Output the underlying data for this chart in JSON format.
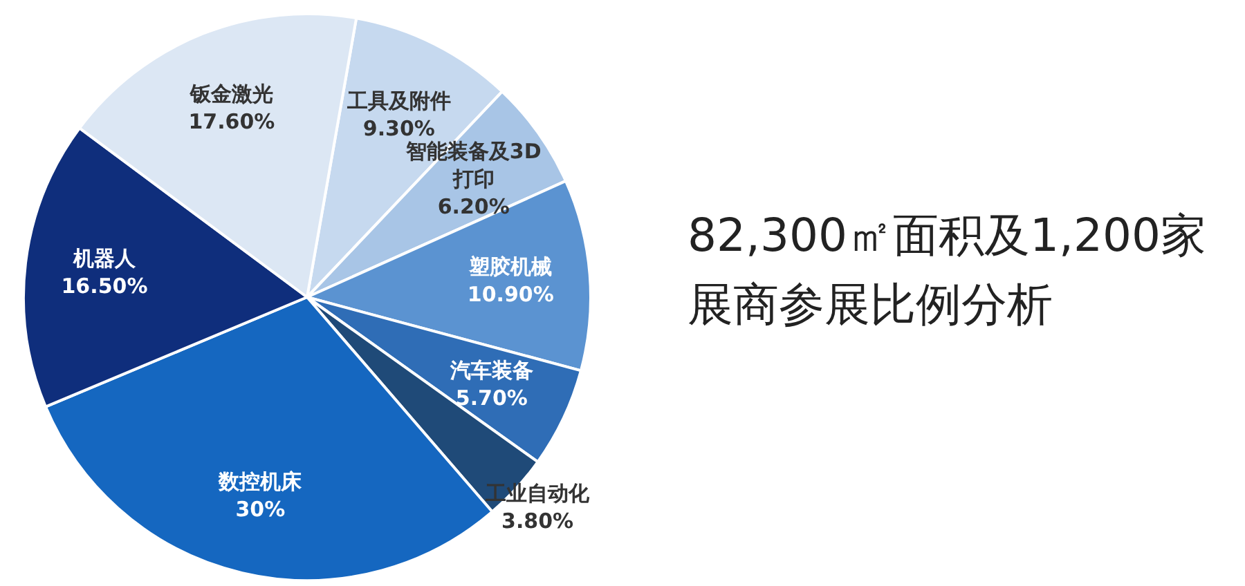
{
  "chart_data": {
    "type": "pie",
    "title": "82,300㎡面积及1,200家展商参展比例分析",
    "categories": [
      "工具及附件",
      "智能装备及3D打印",
      "塑胶机械",
      "汽车装备",
      "工业自动化",
      "数控机床",
      "机器人",
      "钣金激光"
    ],
    "values": [
      9.3,
      6.2,
      10.9,
      5.7,
      3.8,
      30,
      16.5,
      17.6
    ],
    "value_labels": [
      "9.30%",
      "6.20%",
      "10.90%",
      "5.70%",
      "3.80%",
      "30%",
      "16.50%",
      "17.60%"
    ],
    "colors": [
      "#c6d9ef",
      "#a8c5e6",
      "#5b93d1",
      "#2f6db6",
      "#1f4a78",
      "#1567c0",
      "#0f2e7c",
      "#dce7f4"
    ],
    "legend": false
  }
}
